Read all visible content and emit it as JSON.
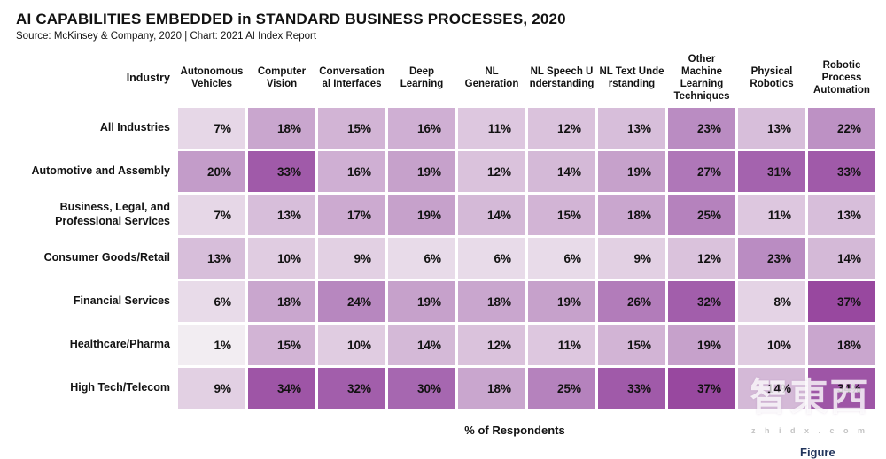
{
  "header": {
    "title": "AI CAPABILITIES EMBEDDED in STANDARD BUSINESS PROCESSES, 2020",
    "subtitle": "Source: McKinsey & Company, 2020 | Chart: 2021 AI Index Report"
  },
  "chart_data": {
    "type": "heatmap",
    "corner_label": "Industry",
    "columns": [
      "Autonomous\nVehicles",
      "Computer\nVision",
      "Conversation\nal Interfaces",
      "Deep\nLearning",
      "NL\nGeneration",
      "NL Speech U\nnderstanding",
      "NL Text Unde\nrstanding",
      "Other\nMachine\nLearning\nTechniques",
      "Physical\nRobotics",
      "Robotic\nProcess\nAutomation"
    ],
    "rows": [
      "All Industries",
      "Automotive and Assembly",
      "Business, Legal, and Professional Services",
      "Consumer Goods/Retail",
      "Financial Services",
      "Healthcare/Pharma",
      "High Tech/Telecom"
    ],
    "values": [
      [
        7,
        18,
        15,
        16,
        11,
        12,
        13,
        23,
        13,
        22
      ],
      [
        20,
        33,
        16,
        19,
        12,
        14,
        19,
        27,
        31,
        33
      ],
      [
        7,
        13,
        17,
        19,
        14,
        15,
        18,
        25,
        11,
        13
      ],
      [
        13,
        10,
        9,
        6,
        6,
        6,
        9,
        12,
        23,
        14
      ],
      [
        6,
        18,
        24,
        19,
        18,
        19,
        26,
        32,
        8,
        37
      ],
      [
        1,
        15,
        10,
        14,
        12,
        11,
        15,
        19,
        10,
        18
      ],
      [
        9,
        34,
        32,
        30,
        18,
        25,
        33,
        37,
        14,
        34
      ]
    ],
    "value_suffix": "%",
    "xlabel": "% of Respondents",
    "legend_position": "none",
    "grid": false,
    "color_scale": {
      "stops": [
        [
          0,
          "#f4f1f4"
        ],
        [
          10,
          "#e0cce1"
        ],
        [
          20,
          "#c39cc9"
        ],
        [
          30,
          "#a667b0"
        ],
        [
          37,
          "#98489f"
        ]
      ]
    }
  },
  "watermark": {
    "chars": "智東西",
    "sub": "z h i d x . c o m"
  },
  "footer": {
    "figure_partial": "Figure"
  }
}
